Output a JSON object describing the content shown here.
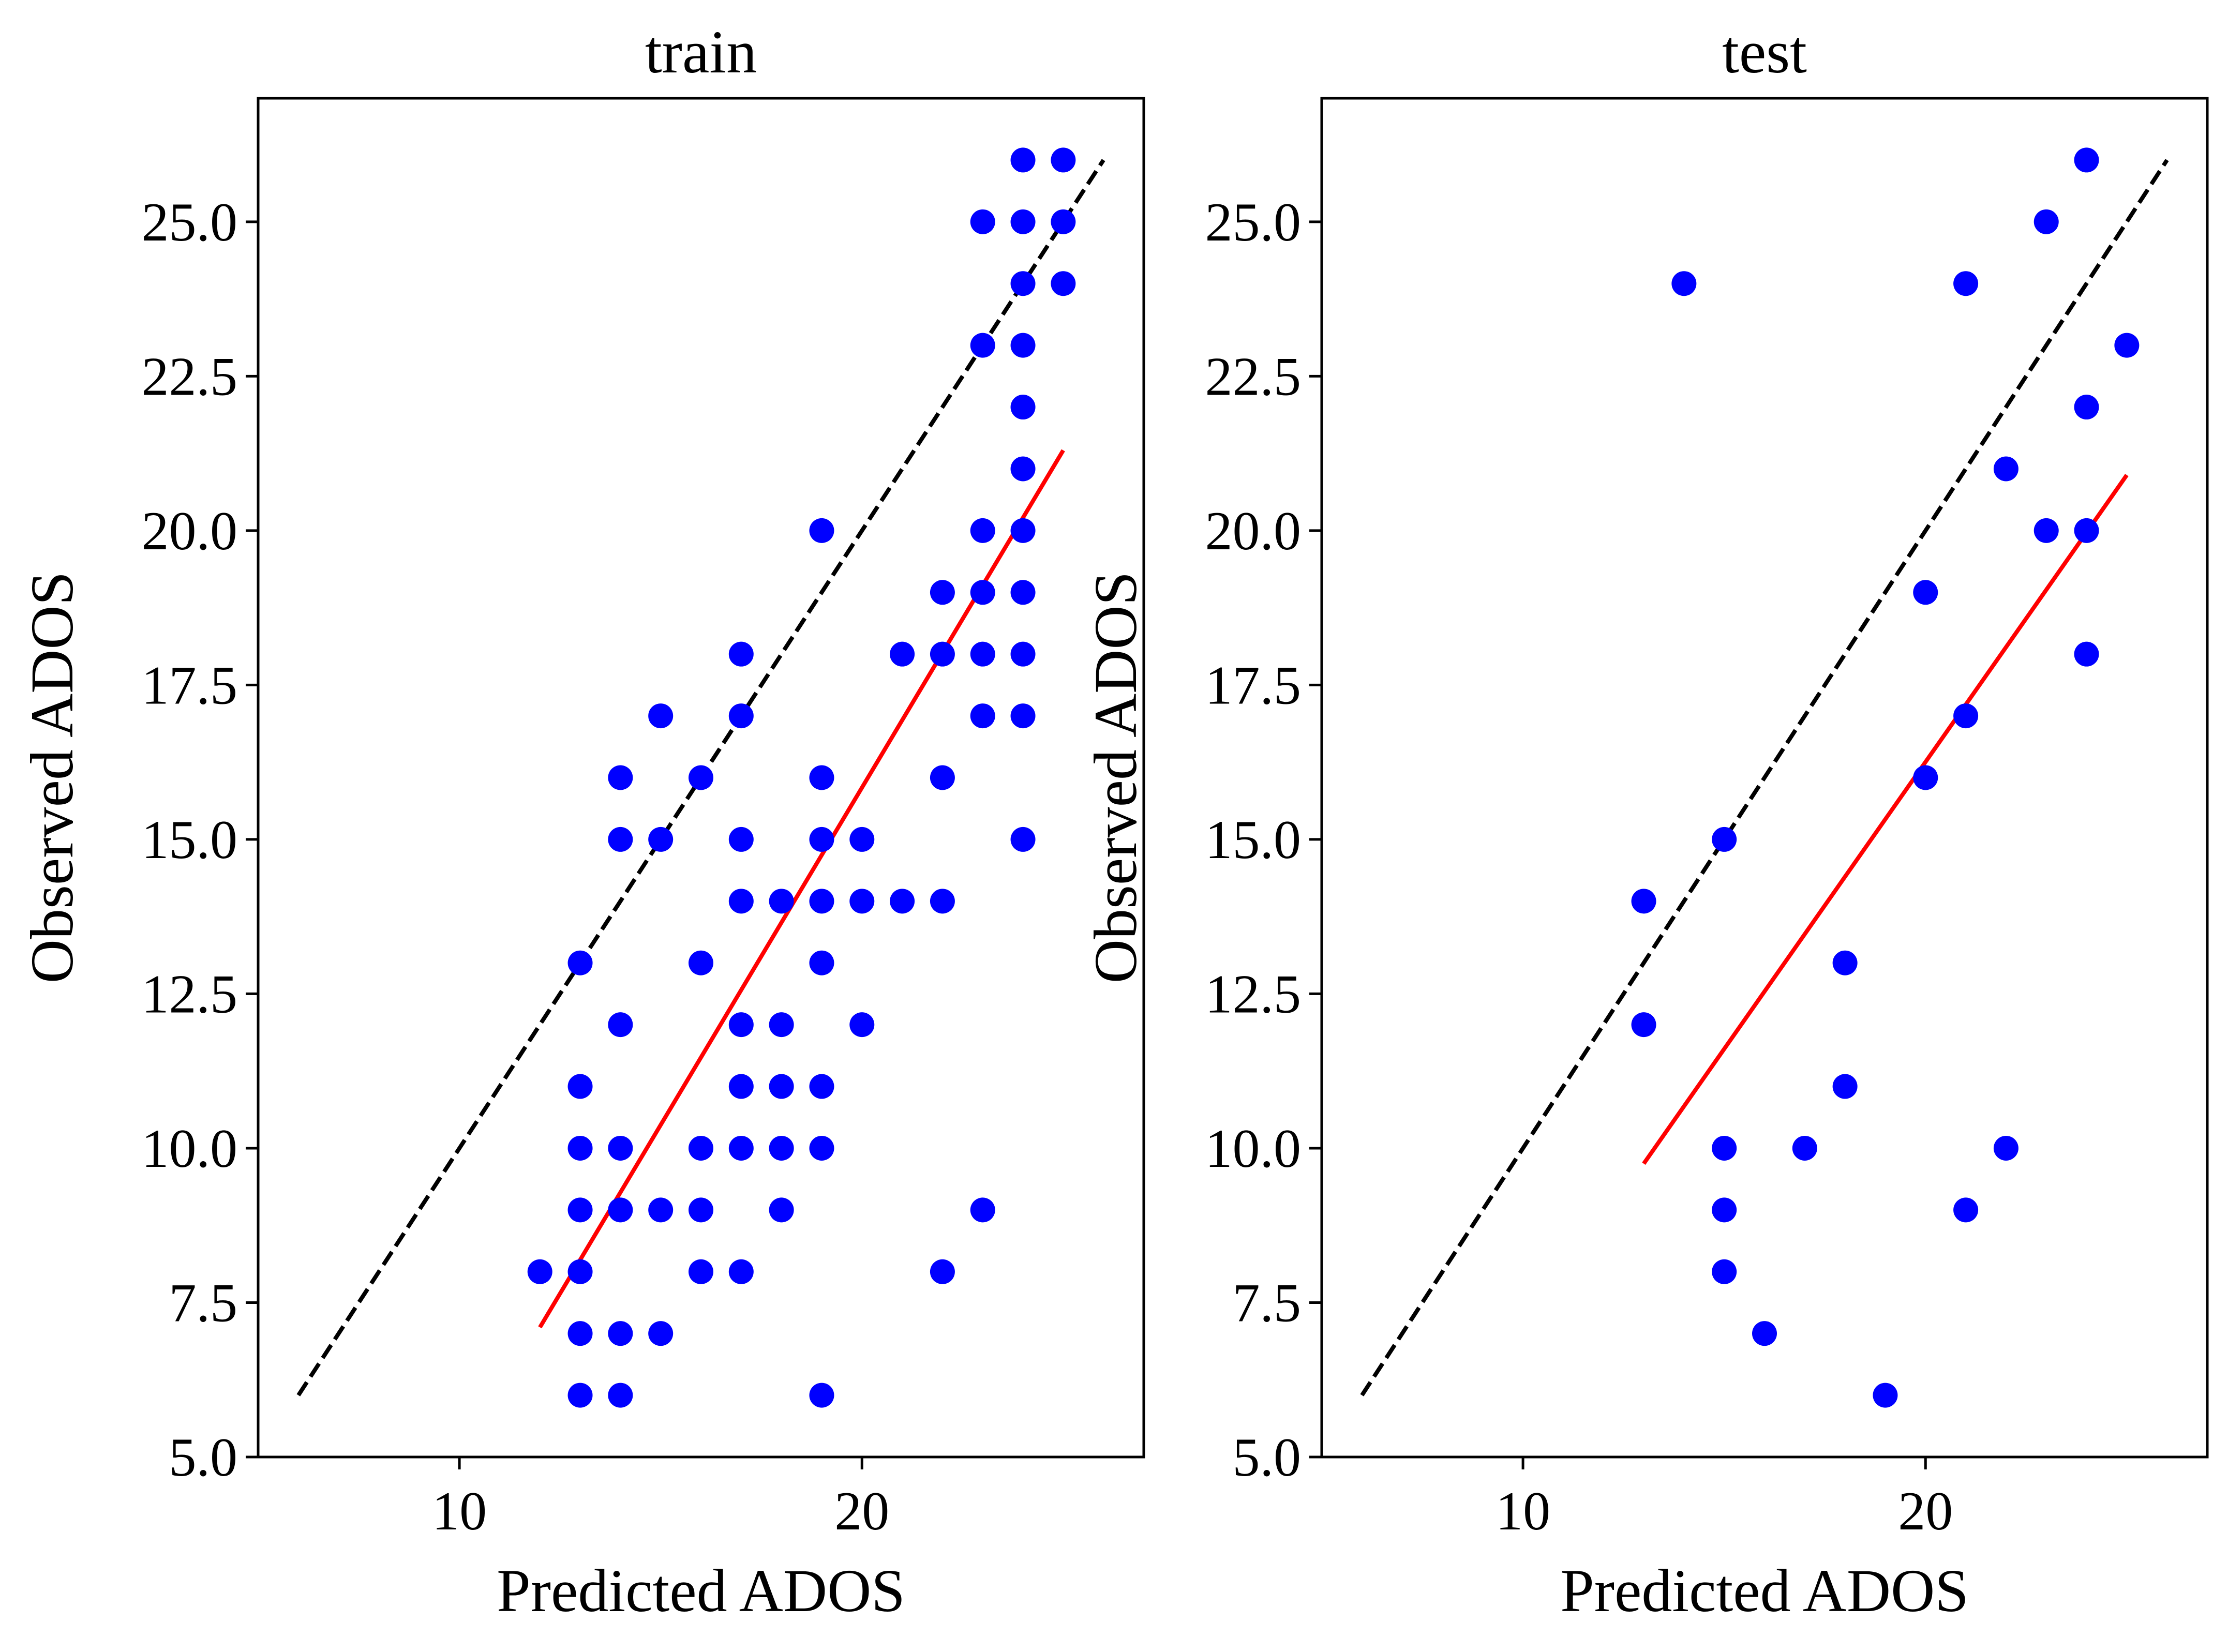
{
  "colors": {
    "points": "#0000ff",
    "fit_line": "#ff0000",
    "identity_line": "#000000",
    "background": "#ffffff"
  },
  "chart_data": [
    {
      "type": "scatter",
      "title": "train",
      "xlabel": "Predicted ADOS",
      "ylabel": "Observed ADOS",
      "xlim": [
        5,
        27
      ],
      "ylim": [
        5,
        27
      ],
      "xticks": [
        10,
        20
      ],
      "xtick_labels": [
        "10",
        "20"
      ],
      "yticks": [
        5,
        7.5,
        10,
        12.5,
        15,
        17.5,
        20,
        22.5,
        25
      ],
      "ytick_labels": [
        "5.0",
        "7.5",
        "10.0",
        "12.5",
        "15.0",
        "17.5",
        "20.0",
        "22.5",
        "25.0"
      ],
      "grid": false,
      "legend": "none",
      "series": [
        {
          "kind": "points",
          "x": [
            12,
            13,
            13,
            13,
            13,
            13,
            13,
            13,
            14,
            14,
            14,
            14,
            14,
            14,
            14,
            15,
            15,
            15,
            15,
            16,
            16,
            16,
            16,
            16,
            17,
            17,
            17,
            17,
            17,
            17,
            17,
            17,
            18,
            18,
            18,
            18,
            18,
            19,
            19,
            19,
            19,
            19,
            19,
            19,
            19,
            20,
            20,
            20,
            21,
            21,
            22,
            22,
            22,
            22,
            22,
            23,
            23,
            23,
            23,
            23,
            23,
            23,
            24,
            24,
            24,
            24,
            24,
            24,
            24,
            24,
            24,
            24,
            24,
            25,
            25,
            25
          ],
          "y": [
            8,
            6,
            7,
            8,
            9,
            10,
            11,
            13,
            6,
            7,
            9,
            10,
            12,
            15,
            16,
            7,
            9,
            15,
            17,
            8,
            9,
            10,
            13,
            16,
            8,
            10,
            11,
            12,
            14,
            15,
            17,
            18,
            9,
            10,
            11,
            12,
            14,
            6,
            10,
            11,
            13,
            14,
            15,
            16,
            20,
            12,
            14,
            15,
            14,
            18,
            8,
            14,
            16,
            18,
            19,
            9,
            17,
            18,
            19,
            20,
            23,
            25,
            15,
            17,
            18,
            19,
            20,
            21,
            22,
            23,
            24,
            25,
            26,
            24,
            25,
            26
          ]
        },
        {
          "kind": "fit_line",
          "x": [
            12,
            25
          ],
          "y": [
            7.1,
            21.3
          ]
        },
        {
          "kind": "identity_line",
          "x": [
            6,
            26
          ],
          "y": [
            6,
            26
          ]
        }
      ]
    },
    {
      "type": "scatter",
      "title": "test",
      "xlabel": "Predicted ADOS",
      "ylabel": "Observed ADOS",
      "xlim": [
        5,
        27
      ],
      "ylim": [
        5,
        27
      ],
      "xticks": [
        10,
        20
      ],
      "xtick_labels": [
        "10",
        "20"
      ],
      "yticks": [
        5,
        7.5,
        10,
        12.5,
        15,
        17.5,
        20,
        22.5,
        25
      ],
      "ytick_labels": [
        "5.0",
        "7.5",
        "10.0",
        "12.5",
        "15.0",
        "17.5",
        "20.0",
        "22.5",
        "25.0"
      ],
      "grid": false,
      "legend": "none",
      "series": [
        {
          "kind": "points",
          "x": [
            13,
            13,
            14,
            15,
            15,
            15,
            15,
            16,
            17,
            18,
            18,
            19,
            20,
            20,
            21,
            21,
            21,
            22,
            22,
            23,
            23,
            24,
            24,
            24,
            24,
            25
          ],
          "y": [
            12,
            14,
            24,
            8,
            9,
            10,
            15,
            7,
            10,
            11,
            13,
            6,
            16,
            19,
            9,
            17,
            24,
            10,
            21,
            20,
            25,
            18,
            20,
            22,
            26,
            23
          ]
        },
        {
          "kind": "fit_line",
          "x": [
            13,
            25
          ],
          "y": [
            9.75,
            20.9
          ]
        },
        {
          "kind": "identity_line",
          "x": [
            6,
            26
          ],
          "y": [
            6,
            26
          ]
        }
      ]
    }
  ]
}
